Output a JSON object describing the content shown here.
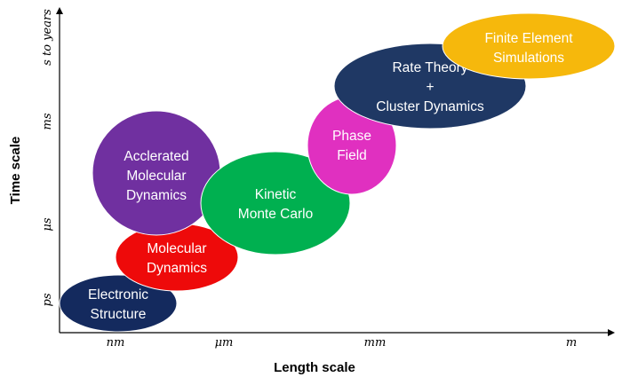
{
  "axes": {
    "x_title": "Length scale",
    "y_title": "Time scale",
    "x_ticks": [
      "nm",
      "μm",
      "mm",
      "m"
    ],
    "y_ticks": [
      "ps",
      "μs",
      "ms",
      "s to years"
    ]
  },
  "methods": [
    {
      "id": "electronic-structure",
      "lines": [
        "Electronic",
        "Structure"
      ],
      "color": "#142a5e"
    },
    {
      "id": "molecular-dynamics",
      "lines": [
        "Molecular",
        "Dynamics"
      ],
      "color": "#ee0a0a"
    },
    {
      "id": "accelerated-molecular-dynamics",
      "lines": [
        "Acclerated",
        "Molecular",
        "Dynamics"
      ],
      "color": "#7030a0"
    },
    {
      "id": "kinetic-monte-carlo",
      "lines": [
        "Kinetic",
        "Monte Carlo"
      ],
      "color": "#00b050"
    },
    {
      "id": "phase-field",
      "lines": [
        "Phase",
        "Field"
      ],
      "color": "#e030c0"
    },
    {
      "id": "rate-theory",
      "lines": [
        "Rate Theory",
        "+",
        "Cluster Dynamics"
      ],
      "color": "#1f3864"
    },
    {
      "id": "finite-element",
      "lines": [
        "Finite Element",
        "Simulations"
      ],
      "color": "#f6b80c"
    }
  ]
}
